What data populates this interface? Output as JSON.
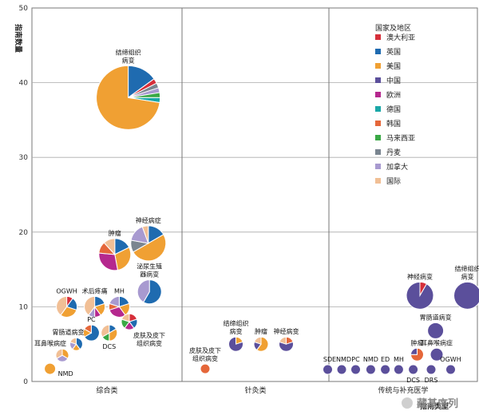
{
  "chart_data": {
    "type": "scatter",
    "ylabel": "指南数量",
    "xlabel": "指南类型",
    "ylim": [
      0,
      50
    ],
    "yticks": [
      0,
      10,
      20,
      30,
      40,
      50
    ],
    "grid": true,
    "legend_placement": "top-right",
    "categories": [
      "综合类",
      "针灸类",
      "传统与补充医学"
    ],
    "category_labels": [
      "综合类",
      "针灸类",
      "传统与补充医学"
    ],
    "legend": {
      "title": "国家及地区",
      "entries": [
        {
          "name": "澳大利亚",
          "color": "#d62f3a"
        },
        {
          "name": "英国",
          "color": "#1f6bb0"
        },
        {
          "name": "美国",
          "color": "#f0a033"
        },
        {
          "name": "中国",
          "color": "#5b4f9b"
        },
        {
          "name": "欧洲",
          "color": "#b5288e"
        },
        {
          "name": "德国",
          "color": "#1aa7a7"
        },
        {
          "name": "韩国",
          "color": "#e5673a"
        },
        {
          "name": "马来西亚",
          "color": "#3aa845"
        },
        {
          "name": "丹麦",
          "color": "#7a8590"
        },
        {
          "name": "加拿大",
          "color": "#a89ad0"
        },
        {
          "name": "国际",
          "color": "#f1bf95"
        }
      ]
    },
    "points": [
      {
        "label": "结缔组织病变",
        "category": "综合类",
        "x": 0.38,
        "y": 38,
        "r": 40,
        "label_pos": "top",
        "label_dx": 0,
        "slices": [
          {
            "country": "英国",
            "value": 6
          },
          {
            "country": "澳大利亚",
            "value": 1
          },
          {
            "country": "丹麦",
            "value": 1
          },
          {
            "country": "加拿大",
            "value": 1
          },
          {
            "country": "马来西亚",
            "value": 1
          },
          {
            "country": "德国",
            "value": 1
          },
          {
            "country": "美国",
            "value": 29
          }
        ]
      },
      {
        "label": "神经病症",
        "category": "综合类",
        "x": 0.74,
        "y": 18.5,
        "r": 22,
        "label_pos": "top",
        "label_dx": 0,
        "slices": [
          {
            "country": "英国",
            "value": 3
          },
          {
            "country": "美国",
            "value": 9
          },
          {
            "country": "丹麦",
            "value": 2
          },
          {
            "country": "加拿大",
            "value": 3
          },
          {
            "country": "国际",
            "value": 1
          }
        ]
      },
      {
        "label": "肿瘤",
        "category": "综合类",
        "x": 0.14,
        "y": 17,
        "r": 20,
        "label_pos": "top",
        "label_dx": 0,
        "slices": [
          {
            "country": "英国",
            "value": 3
          },
          {
            "country": "美国",
            "value": 5
          },
          {
            "country": "欧洲",
            "value": 5
          },
          {
            "country": "韩国",
            "value": 2
          },
          {
            "country": "国际",
            "value": 2
          }
        ]
      },
      {
        "label": "泌尿生殖器病变",
        "category": "综合类",
        "x": 0.76,
        "y": 12,
        "r": 15,
        "label_pos": "top",
        "label_dx": 0,
        "slices": [
          {
            "country": "英国",
            "value": 7
          },
          {
            "country": "加拿大",
            "value": 5
          }
        ]
      },
      {
        "label": "OGWH",
        "category": "综合类",
        "x": -0.72,
        "y": 10,
        "r": 13,
        "label_pos": "top",
        "label_dx": 0,
        "slices": [
          {
            "country": "澳大利亚",
            "value": 1
          },
          {
            "country": "英国",
            "value": 2
          },
          {
            "country": "美国",
            "value": 3
          },
          {
            "country": "国际",
            "value": 4
          }
        ]
      },
      {
        "label": "术后疼痛",
        "category": "综合类",
        "x": -0.22,
        "y": 10,
        "r": 13,
        "label_pos": "top",
        "label_dx": 0,
        "slices": [
          {
            "country": "英国",
            "value": 2
          },
          {
            "country": "美国",
            "value": 2
          },
          {
            "country": "欧洲",
            "value": 1
          },
          {
            "country": "加拿大",
            "value": 1
          },
          {
            "country": "国际",
            "value": 4
          }
        ]
      },
      {
        "label": "MH",
        "category": "综合类",
        "x": 0.22,
        "y": 10,
        "r": 13,
        "label_pos": "top",
        "label_dx": 0,
        "slices": [
          {
            "country": "英国",
            "value": 2
          },
          {
            "country": "美国",
            "value": 2
          },
          {
            "country": "欧洲",
            "value": 3
          },
          {
            "country": "韩国",
            "value": 1
          },
          {
            "country": "加拿大",
            "value": 2
          }
        ]
      },
      {
        "label": "PC",
        "category": "综合类",
        "x": -0.28,
        "y": 6.5,
        "r": 10,
        "label_pos": "top",
        "label_dx": 0,
        "slices": [
          {
            "country": "英国",
            "value": 4
          },
          {
            "country": "美国",
            "value": 1
          },
          {
            "country": "韩国",
            "value": 1
          }
        ]
      },
      {
        "label": "DCS",
        "category": "综合类",
        "x": 0.04,
        "y": 6.5,
        "r": 10,
        "label_pos": "bottom",
        "label_dx": 0,
        "slices": [
          {
            "country": "英国",
            "value": 1
          },
          {
            "country": "美国",
            "value": 2
          },
          {
            "country": "马来西亚",
            "value": 1
          },
          {
            "country": "国际",
            "value": 2
          }
        ]
      },
      {
        "label": "皮肤及皮下组织病变",
        "category": "综合类",
        "x": 0.4,
        "y": 8,
        "r": 10,
        "label_pos": "bottom",
        "label_dx": 25,
        "slices": [
          {
            "country": "澳大利亚",
            "value": 1
          },
          {
            "country": "英国",
            "value": 1
          },
          {
            "country": "欧洲",
            "value": 1
          },
          {
            "country": "马来西亚",
            "value": 1
          },
          {
            "country": "国际",
            "value": 1
          }
        ]
      },
      {
        "label": "胃肠道病变",
        "category": "综合类",
        "x": -0.55,
        "y": 5,
        "r": 8,
        "label_pos": "top",
        "label_dx": -10,
        "slices": [
          {
            "country": "英国",
            "value": 2
          },
          {
            "country": "美国",
            "value": 1
          },
          {
            "country": "加拿大",
            "value": 1
          },
          {
            "country": "国际",
            "value": 1
          }
        ]
      },
      {
        "label": "耳鼻喉病症",
        "category": "综合类",
        "x": -0.8,
        "y": 3.5,
        "r": 8,
        "label_pos": "top",
        "label_dx": -15,
        "slices": [
          {
            "country": "美国",
            "value": 1
          },
          {
            "country": "加拿大",
            "value": 1
          },
          {
            "country": "国际",
            "value": 1
          }
        ]
      },
      {
        "label": "NMD",
        "category": "综合类",
        "x": -1.02,
        "y": 1.7,
        "r": 7,
        "label_pos": "right",
        "label_dx": 0,
        "slices": [
          {
            "country": "美国",
            "value": 1
          }
        ]
      },
      {
        "label": "结缔组织病变",
        "category": "针灸类",
        "x": -0.35,
        "y": 5,
        "r": 9,
        "label_pos": "top",
        "label_dx": 0,
        "slices": [
          {
            "country": "美国",
            "value": 1
          },
          {
            "country": "中国",
            "value": 4
          }
        ]
      },
      {
        "label": "肿瘤",
        "category": "针灸类",
        "x": 0.1,
        "y": 5,
        "r": 9,
        "label_pos": "top",
        "label_dx": 0,
        "slices": [
          {
            "country": "美国",
            "value": 3
          },
          {
            "country": "中国",
            "value": 1
          },
          {
            "country": "国际",
            "value": 1
          }
        ]
      },
      {
        "label": "神经病变",
        "category": "针灸类",
        "x": 0.55,
        "y": 5,
        "r": 9,
        "label_pos": "top",
        "label_dx": 0,
        "slices": [
          {
            "country": "韩国",
            "value": 1
          },
          {
            "country": "中国",
            "value": 3
          },
          {
            "country": "国际",
            "value": 1
          }
        ]
      },
      {
        "label": "皮肤及皮下组织病变",
        "category": "针灸类",
        "x": -0.9,
        "y": 1.7,
        "r": 6,
        "label_pos": "top",
        "label_dx": 0,
        "slices": [
          {
            "country": "韩国",
            "value": 1
          }
        ]
      },
      {
        "label": "神经病变",
        "category": "传统与补充医学",
        "x": 0.3,
        "y": 11.5,
        "r": 17,
        "label_pos": "top",
        "label_dx": 0,
        "slices": [
          {
            "country": "澳大利亚",
            "value": 1
          },
          {
            "country": "中国",
            "value": 11
          }
        ]
      },
      {
        "label": "结缔组织病变",
        "category": "传统与补充医学",
        "x": 1.15,
        "y": 11.5,
        "r": 17,
        "label_pos": "top",
        "label_dx": 0,
        "slices": [
          {
            "country": "中国",
            "value": 12
          }
        ]
      },
      {
        "label": "胃肠道病变",
        "category": "传统与补充医学",
        "x": 0.58,
        "y": 6.8,
        "r": 10,
        "label_pos": "top",
        "label_dx": 0,
        "slices": [
          {
            "country": "中国",
            "value": 7
          }
        ]
      },
      {
        "label": "肿瘤",
        "category": "传统与补充医学",
        "x": 0.25,
        "y": 3.6,
        "r": 8,
        "label_pos": "top",
        "label_dx": 0,
        "slices": [
          {
            "country": "韩国",
            "value": 3
          },
          {
            "country": "中国",
            "value": 1
          }
        ]
      },
      {
        "label": "耳鼻喉病症",
        "category": "传统与补充医学",
        "x": 0.6,
        "y": 3.6,
        "r": 8,
        "label_pos": "top",
        "label_dx": 0,
        "slices": [
          {
            "country": "中国",
            "value": 4
          }
        ]
      },
      {
        "label": "SD",
        "category": "传统与补充医学",
        "x": -1.35,
        "y": 1.6,
        "r": 6,
        "label_pos": "top",
        "label_dx": 0,
        "slices": [
          {
            "country": "中国",
            "value": 2
          }
        ]
      },
      {
        "label": "ENMD",
        "category": "传统与补充医学",
        "x": -1.1,
        "y": 1.6,
        "r": 6,
        "label_pos": "top",
        "label_dx": 0,
        "slices": [
          {
            "country": "中国",
            "value": 2
          }
        ]
      },
      {
        "label": "PC",
        "category": "传统与补充医学",
        "x": -0.85,
        "y": 1.6,
        "r": 6,
        "label_pos": "top",
        "label_dx": 0,
        "slices": [
          {
            "country": "中国",
            "value": 2
          }
        ]
      },
      {
        "label": "NMD",
        "category": "传统与补充医学",
        "x": -0.58,
        "y": 1.6,
        "r": 6,
        "label_pos": "top",
        "label_dx": 0,
        "slices": [
          {
            "country": "中国",
            "value": 2
          }
        ]
      },
      {
        "label": "ED",
        "category": "传统与补充医学",
        "x": -0.32,
        "y": 1.6,
        "r": 6,
        "label_pos": "top",
        "label_dx": 0,
        "slices": [
          {
            "country": "中国",
            "value": 2
          }
        ]
      },
      {
        "label": "MH",
        "category": "传统与补充医学",
        "x": -0.08,
        "y": 1.6,
        "r": 6,
        "label_pos": "top",
        "label_dx": 0,
        "slices": [
          {
            "country": "中国",
            "value": 2
          }
        ]
      },
      {
        "label": "DCS",
        "category": "传统与补充医学",
        "x": 0.18,
        "y": 1.6,
        "r": 6,
        "label_pos": "bottom",
        "label_dx": 0,
        "slices": [
          {
            "country": "中国",
            "value": 2
          }
        ]
      },
      {
        "label": "DRS",
        "category": "传统与补充医学",
        "x": 0.5,
        "y": 1.6,
        "r": 6,
        "label_pos": "bottom",
        "label_dx": 0,
        "slices": [
          {
            "country": "中国",
            "value": 2
          }
        ]
      },
      {
        "label": "OGWH",
        "category": "传统与补充医学",
        "x": 0.85,
        "y": 1.6,
        "r": 6,
        "label_pos": "top",
        "label_dx": 0,
        "slices": [
          {
            "country": "中国",
            "value": 2
          }
        ]
      }
    ]
  },
  "watermark": {
    "text": "藏基序列",
    "icon": "wechat-icon"
  }
}
